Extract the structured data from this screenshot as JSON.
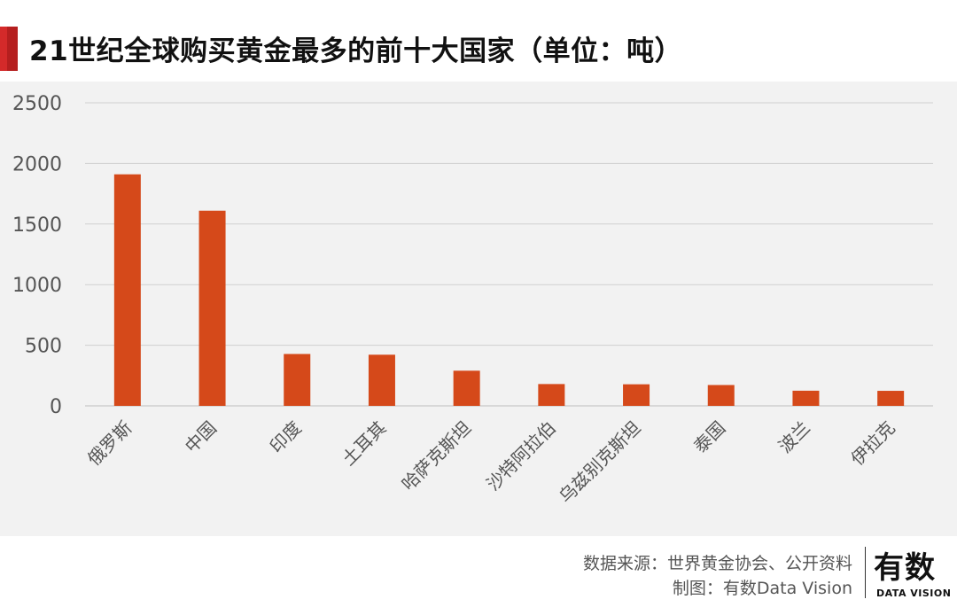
{
  "title": "21世纪全球购买黄金最多的前十大国家（单位：吨）",
  "colors": {
    "bar": "#d5491a",
    "accent": "#d42a2a",
    "grid": "#d0d0d0",
    "plot_background": "#f2f2f2"
  },
  "chart_data": {
    "type": "bar",
    "title": "21世纪全球购买黄金最多的前十大国家（单位：吨）",
    "xlabel": "",
    "ylabel": "",
    "categories": [
      "俄罗斯",
      "中国",
      "印度",
      "土耳其",
      "哈萨克斯坦",
      "沙特阿拉伯",
      "乌兹别克斯坦",
      "泰国",
      "波兰",
      "伊拉克"
    ],
    "values": [
      1910,
      1610,
      428,
      422,
      290,
      180,
      178,
      172,
      125,
      124
    ],
    "ylim": [
      0,
      2500
    ],
    "yticks": [
      0,
      500,
      1000,
      1500,
      2000,
      2500
    ],
    "ytick_labels": [
      "0",
      "500",
      "1000",
      "1500",
      "2000",
      "2500"
    ],
    "grid": true,
    "legend": "none"
  },
  "footer": {
    "source": "数据来源：世界黄金协会、公开资料",
    "credit": "制图：有数Data Vision"
  },
  "brand": {
    "name": "有数",
    "subtitle": "DATA VISION"
  }
}
